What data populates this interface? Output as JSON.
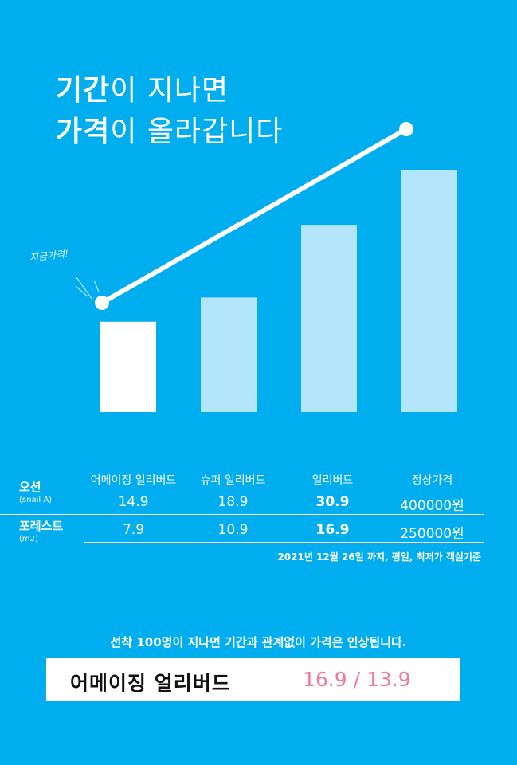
{
  "headline": {
    "line1_bold": "기간",
    "line1_rest": "이 지나면",
    "line2_bold": "가격",
    "line2_rest": "이 올라갑니다"
  },
  "annotation": "지금가격!",
  "colors": {
    "background": "#00adef",
    "bar_current": "#ffffff",
    "bar_future": "#b3e6fa",
    "price_accent": "#f07a9a"
  },
  "chart_data": {
    "type": "bar",
    "categories": [
      "어메이징 얼리버드",
      "슈퍼 얼리버드",
      "얼리버드",
      "정상가격"
    ],
    "series": [
      {
        "values": [
          14.9,
          18.9,
          30.9,
          40.0
        ]
      }
    ],
    "trend_line": {
      "from_category": 0,
      "to_category": 3
    },
    "grid": false
  },
  "table": {
    "headers": [
      "어메이징 얼리버드",
      "슈퍼 얼리버드",
      "얼리버드",
      "정상가격"
    ],
    "rows": [
      {
        "label": "오션",
        "sub": "(snail A)",
        "values": [
          "14.9",
          "18.9",
          "30.9",
          "400000원"
        ]
      },
      {
        "label": "포레스트",
        "sub": "(m2)",
        "values": [
          "7.9",
          "10.9",
          "16.9",
          "250000원"
        ]
      }
    ]
  },
  "footnote": "2021년 12월 26일 까지, 평일, 최저가 객실기준",
  "notice": "선착 100명이 지나면 기간과 관계없이 가격은 인상됩니다.",
  "promo": {
    "label": "어메이징 얼리버드",
    "price": "16.9 / 13.9"
  }
}
